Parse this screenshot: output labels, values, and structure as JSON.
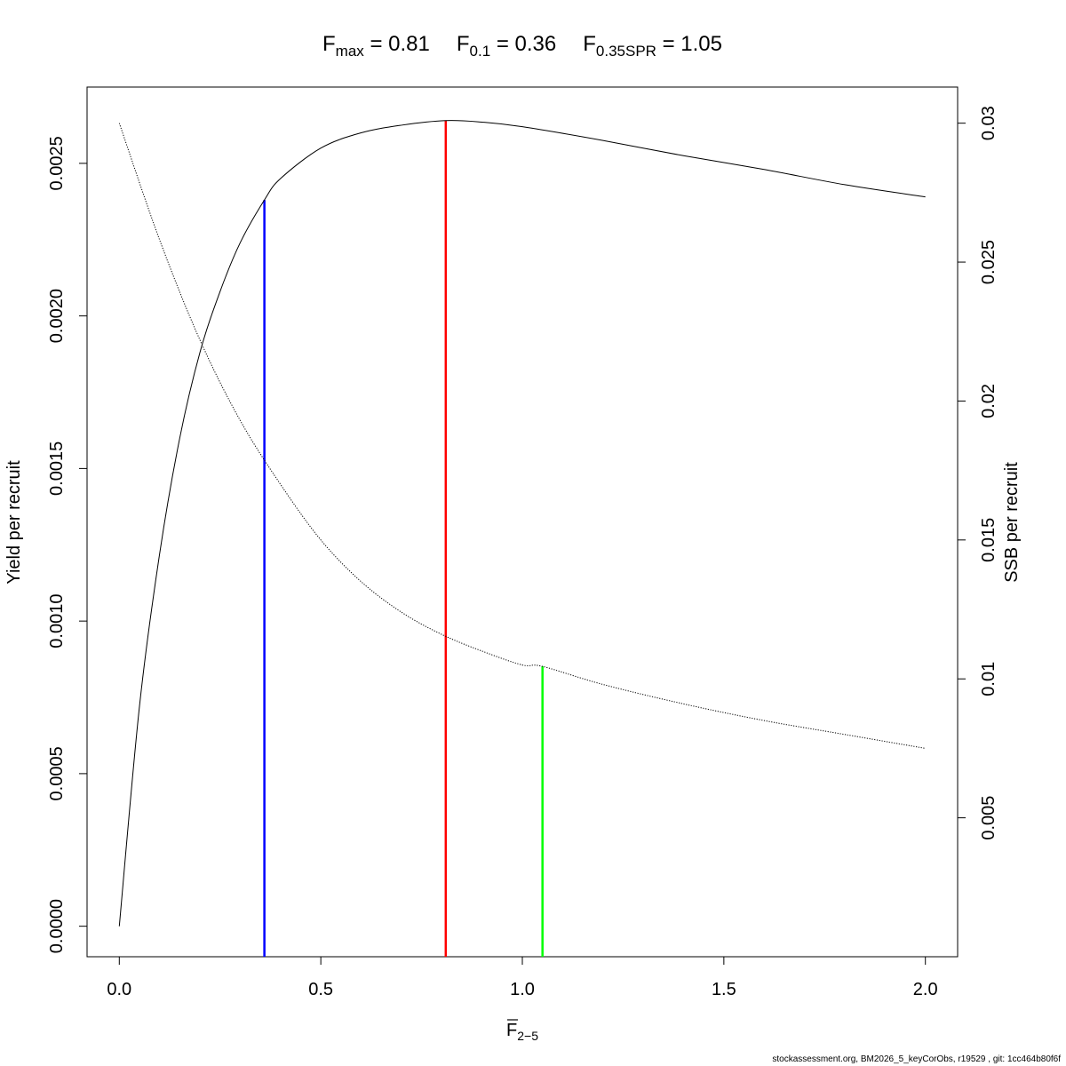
{
  "header": {
    "fmax": {
      "sym": "F",
      "sub": "max",
      "eq": " = 0.81"
    },
    "f01": {
      "sym": "F",
      "sub": "0.1",
      "eq": " = 0.36"
    },
    "fspr": {
      "sym": "F",
      "sub": "0.35SPR",
      "eq": " = 1.05"
    }
  },
  "axes": {
    "ylabel_left": "Yield per recruit",
    "ylabel_right": "SSB per recruit",
    "xlabel": {
      "sym": "F",
      "sub": "2−5"
    }
  },
  "footer": "stockassessment.org, BM2026_5_keyCorObs, r19529 , git: 1cc464b80f6f",
  "chart_data": {
    "type": "line",
    "xlim": [
      -0.08,
      2.08
    ],
    "ylim_left": [
      -0.0001,
      0.00275
    ],
    "ylim_right": [
      0.0,
      0.0313
    ],
    "x_ticks": [
      "0.0",
      "0.5",
      "1.0",
      "1.5",
      "2.0"
    ],
    "x_tick_values": [
      0,
      0.5,
      1.0,
      1.5,
      2.0
    ],
    "y_left_ticks": [
      "0.0000",
      "0.0005",
      "0.0010",
      "0.0015",
      "0.0020",
      "0.0025"
    ],
    "y_left_tick_values": [
      0,
      0.0005,
      0.001,
      0.0015,
      0.002,
      0.0025
    ],
    "y_right_ticks": [
      "0.005",
      "0.01",
      "0.015",
      "0.02",
      "0.025",
      "0.03"
    ],
    "y_right_tick_values": [
      0.005,
      0.01,
      0.015,
      0.02,
      0.025,
      0.03
    ],
    "series": [
      {
        "axis": "left",
        "style": "solid",
        "x": [
          0,
          0.05,
          0.1,
          0.15,
          0.2,
          0.25,
          0.3,
          0.36,
          0.4,
          0.5,
          0.6,
          0.7,
          0.81,
          0.9,
          1.0,
          1.2,
          1.4,
          1.6,
          1.8,
          2.0
        ],
        "y": [
          0.0,
          0.00072,
          0.00122,
          0.0016,
          0.00188,
          0.00208,
          0.00224,
          0.00238,
          0.00245,
          0.00255,
          0.0026,
          0.002625,
          0.00264,
          0.002635,
          0.00262,
          0.002575,
          0.002525,
          0.00248,
          0.00243,
          0.00239
        ]
      },
      {
        "axis": "right",
        "style": "dotted",
        "x": [
          0,
          0.1,
          0.2,
          0.3,
          0.4,
          0.5,
          0.6,
          0.7,
          0.8,
          0.9,
          1.0,
          1.05,
          1.2,
          1.4,
          1.6,
          1.8,
          2.0
        ],
        "y": [
          0.03,
          0.0258,
          0.0222,
          0.0193,
          0.017,
          0.015,
          0.0135,
          0.0124,
          0.0116,
          0.011,
          0.0105,
          0.01045,
          0.0098,
          0.0091,
          0.0085,
          0.008,
          0.0075
        ]
      }
    ],
    "reference_lines": [
      {
        "name": "F0.1",
        "x": 0.36,
        "y_left_top": 0.00238,
        "color": "#0000ff"
      },
      {
        "name": "Fmax",
        "x": 0.81,
        "y_left_top": 0.00264,
        "color": "#ff0000"
      },
      {
        "name": "F0.35SPR",
        "x": 1.05,
        "y_right_top": 0.01045,
        "color": "#00ff00"
      }
    ]
  }
}
